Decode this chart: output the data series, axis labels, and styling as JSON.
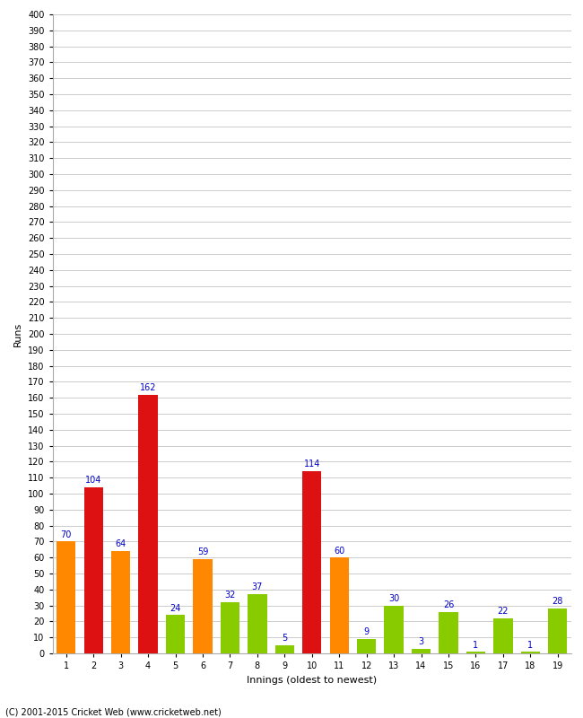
{
  "xlabel": "Innings (oldest to newest)",
  "ylabel": "Runs",
  "innings": [
    1,
    2,
    3,
    4,
    5,
    6,
    7,
    8,
    9,
    10,
    11,
    12,
    13,
    14,
    15,
    16,
    17,
    18,
    19
  ],
  "values": [
    70,
    104,
    64,
    162,
    24,
    59,
    32,
    37,
    5,
    114,
    60,
    9,
    30,
    3,
    26,
    1,
    22,
    1,
    28
  ],
  "colors": [
    "#ff8800",
    "#dd1111",
    "#ff8800",
    "#dd1111",
    "#88cc00",
    "#ff8800",
    "#88cc00",
    "#88cc00",
    "#88cc00",
    "#dd1111",
    "#ff8800",
    "#88cc00",
    "#88cc00",
    "#88cc00",
    "#88cc00",
    "#88cc00",
    "#88cc00",
    "#88cc00",
    "#88cc00"
  ],
  "ylim": [
    0,
    400
  ],
  "ytick_step": 10,
  "background_color": "#ffffff",
  "grid_color": "#cccccc",
  "label_color": "#0000cc",
  "footer": "(C) 2001-2015 Cricket Web (www.cricketweb.net)",
  "bar_width": 0.7,
  "label_fontsize": 7,
  "tick_fontsize": 7,
  "axis_label_fontsize": 8,
  "footer_fontsize": 7
}
